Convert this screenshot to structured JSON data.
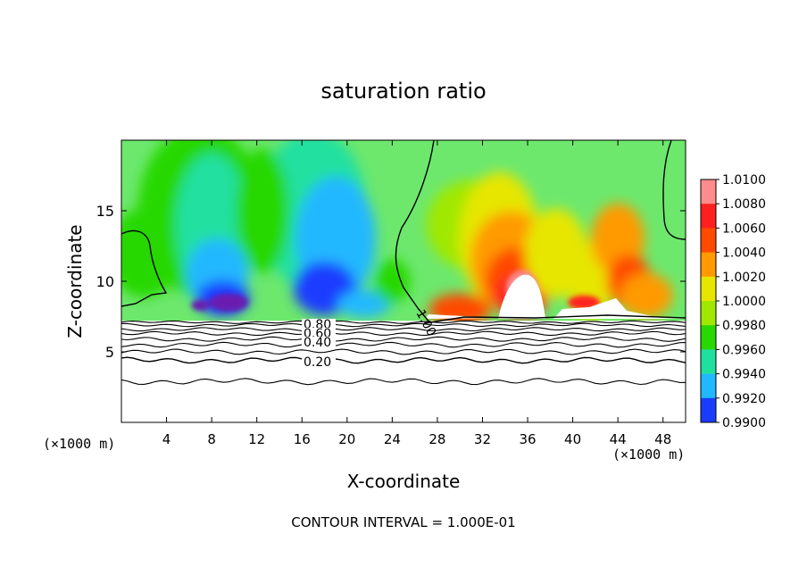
{
  "chart_data": {
    "type": "heatmap",
    "title": "saturation ratio",
    "xlabel": "X-coordinate",
    "ylabel": "Z-coordinate",
    "x_unit_label_left": "(×1000 m)",
    "x_unit_label_right": "(×1000 m)",
    "xlim": [
      0,
      50
    ],
    "ylim": [
      0,
      20
    ],
    "x_ticks": [
      4,
      8,
      12,
      16,
      20,
      24,
      28,
      32,
      36,
      40,
      44,
      48
    ],
    "y_ticks": [
      5,
      10,
      15
    ],
    "colorbar": {
      "levels": [
        "1.0100",
        "1.0080",
        "1.0060",
        "1.0040",
        "1.0020",
        "1.0000",
        "0.9980",
        "0.9960",
        "0.9940",
        "0.9920",
        "0.9900"
      ],
      "values": [
        1.01,
        1.008,
        1.006,
        1.004,
        1.002,
        1.0,
        0.998,
        0.996,
        0.994,
        0.992,
        0.99
      ],
      "colors": [
        "#ff8c8c",
        "#ff2020",
        "#ff4a00",
        "#ff9a00",
        "#e6e600",
        "#a0e800",
        "#28d800",
        "#20e0a0",
        "#20b8ff",
        "#1a3cff",
        "#6a1ab0"
      ]
    },
    "contour_labels": [
      "1.00",
      "0.80",
      "0.60",
      "0.40",
      "0.20"
    ],
    "contour_label_values": [
      1.0,
      0.8,
      0.6,
      0.4,
      0.2
    ],
    "contour_interval_text": "CONTOUR INTERVAL = 1.000E-01"
  },
  "colors": {
    "background_field": "#6de86d",
    "dry_core": "#1a2ad8",
    "moist_core": "#ff2a10"
  }
}
